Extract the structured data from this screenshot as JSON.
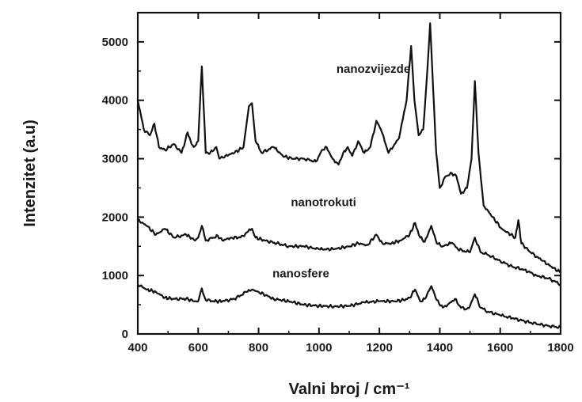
{
  "chart_data": {
    "type": "line",
    "title": "",
    "xlabel": "Valni broj / cm⁻¹",
    "ylabel": "Intenzitet (a.u)",
    "xlim": [
      400,
      1800
    ],
    "ylim": [
      0,
      5500
    ],
    "xticks": [
      "400",
      "600",
      "800",
      "1000",
      "1200",
      "1400",
      "1600",
      "1800"
    ],
    "yticks": [
      "0",
      "1000",
      "2000",
      "3000",
      "4000",
      "5000"
    ],
    "grid": false,
    "series": [
      {
        "name": "nanozvijezde",
        "x": [
          400,
          420,
          440,
          455,
          470,
          490,
          520,
          545,
          565,
          575,
          585,
          600,
          612,
          625,
          640,
          660,
          670,
          690,
          720,
          750,
          768,
          778,
          790,
          810,
          850,
          880,
          910,
          950,
          990,
          1010,
          1025,
          1045,
          1065,
          1080,
          1095,
          1110,
          1130,
          1150,
          1170,
          1190,
          1205,
          1230,
          1265,
          1290,
          1305,
          1316,
          1330,
          1345,
          1358,
          1368,
          1378,
          1388,
          1400,
          1420,
          1440,
          1455,
          1470,
          1490,
          1505,
          1516,
          1528,
          1545,
          1575,
          1605,
          1635,
          1650,
          1660,
          1670,
          1700,
          1740,
          1770,
          1800
        ],
        "values": [
          4000,
          3500,
          3400,
          3600,
          3200,
          3150,
          3250,
          3100,
          3450,
          3300,
          3200,
          3300,
          4580,
          3100,
          3100,
          3200,
          3000,
          3050,
          3100,
          3200,
          3900,
          3950,
          3300,
          3100,
          3200,
          3050,
          3000,
          3000,
          2950,
          3150,
          3200,
          3000,
          2900,
          3100,
          3200,
          3050,
          3300,
          3100,
          3200,
          3650,
          3500,
          3100,
          3350,
          4000,
          4930,
          4000,
          3400,
          3500,
          4450,
          5320,
          4200,
          3100,
          2500,
          2700,
          2750,
          2700,
          2400,
          2500,
          3000,
          4330,
          3100,
          2200,
          2000,
          1800,
          1700,
          1650,
          1950,
          1550,
          1400,
          1250,
          1150,
          1050
        ]
      },
      {
        "name": "nanotrokuti",
        "x": [
          400,
          430,
          460,
          490,
          520,
          560,
          590,
          600,
          612,
          625,
          650,
          665,
          680,
          710,
          740,
          765,
          778,
          790,
          820,
          860,
          900,
          950,
          1000,
          1050,
          1100,
          1130,
          1160,
          1190,
          1210,
          1240,
          1270,
          1300,
          1318,
          1335,
          1350,
          1372,
          1390,
          1410,
          1440,
          1460,
          1480,
          1500,
          1516,
          1535,
          1560,
          1600,
          1640,
          1680,
          1720,
          1760,
          1800
        ],
        "values": [
          1950,
          1850,
          1700,
          1800,
          1650,
          1700,
          1600,
          1650,
          1850,
          1600,
          1650,
          1680,
          1600,
          1650,
          1650,
          1750,
          1800,
          1650,
          1600,
          1550,
          1500,
          1500,
          1450,
          1450,
          1500,
          1550,
          1520,
          1700,
          1550,
          1550,
          1600,
          1700,
          1900,
          1650,
          1580,
          1850,
          1550,
          1500,
          1560,
          1450,
          1420,
          1400,
          1650,
          1400,
          1350,
          1250,
          1150,
          1100,
          1000,
          950,
          850
        ]
      },
      {
        "name": "nanosfere",
        "x": [
          400,
          430,
          460,
          490,
          520,
          560,
          590,
          600,
          612,
          625,
          650,
          680,
          720,
          760,
          778,
          800,
          850,
          900,
          950,
          1000,
          1050,
          1100,
          1150,
          1200,
          1250,
          1280,
          1300,
          1318,
          1335,
          1350,
          1372,
          1390,
          1410,
          1430,
          1450,
          1470,
          1490,
          1500,
          1516,
          1535,
          1560,
          1600,
          1640,
          1680,
          1720,
          1760,
          1800
        ],
        "values": [
          850,
          760,
          720,
          620,
          600,
          600,
          560,
          560,
          780,
          580,
          560,
          560,
          600,
          720,
          760,
          720,
          600,
          560,
          500,
          480,
          470,
          480,
          540,
          560,
          560,
          580,
          620,
          760,
          560,
          600,
          820,
          580,
          450,
          520,
          600,
          450,
          430,
          480,
          680,
          450,
          380,
          320,
          270,
          220,
          170,
          140,
          110
        ]
      }
    ],
    "labels": [
      "nanozvijezde",
      "nanotrokuti",
      "nanosfere"
    ],
    "colors": {
      "trace": "#111111",
      "axis": "#111111",
      "text": "#1a1a1a"
    }
  }
}
